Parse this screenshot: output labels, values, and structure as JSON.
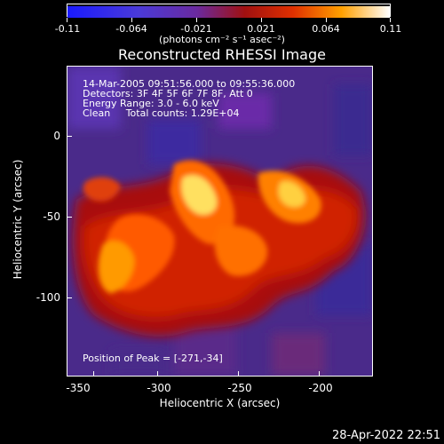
{
  "colorbar": {
    "ticks": [
      "-0.11",
      "-0.064",
      "-0.021",
      "0.021",
      "0.064",
      "0.11"
    ],
    "units": "(photons cm⁻² s⁻¹ asec⁻²)"
  },
  "title": "Reconstructed RHESSI Image",
  "info": {
    "line1": "14-Mar-2005 09:51:56.000 to 09:55:36.000",
    "line2": "Detectors: 3F 4F 5F 6F 7F 8F, Att 0",
    "line3": "Energy Range: 3.0 - 6.0 keV",
    "line4": "Clean     Total counts: 1.29E+04",
    "peak": "Position of Peak = [-271,-34]"
  },
  "axes": {
    "xlabel": "Heliocentric X (arcsec)",
    "ylabel": "Heliocentric Y (arcsec)",
    "xticks": [
      "-350",
      "-300",
      "-250",
      "-200"
    ],
    "yticks": [
      "0",
      "-50",
      "-100"
    ]
  },
  "timestamp": "28-Apr-2022 22:51",
  "colors": {
    "cmap_low": "#1a1aff",
    "cmap_mid": "#b00000",
    "cmap_high": "#ffffff",
    "background_noise": "#5a2a9a"
  }
}
